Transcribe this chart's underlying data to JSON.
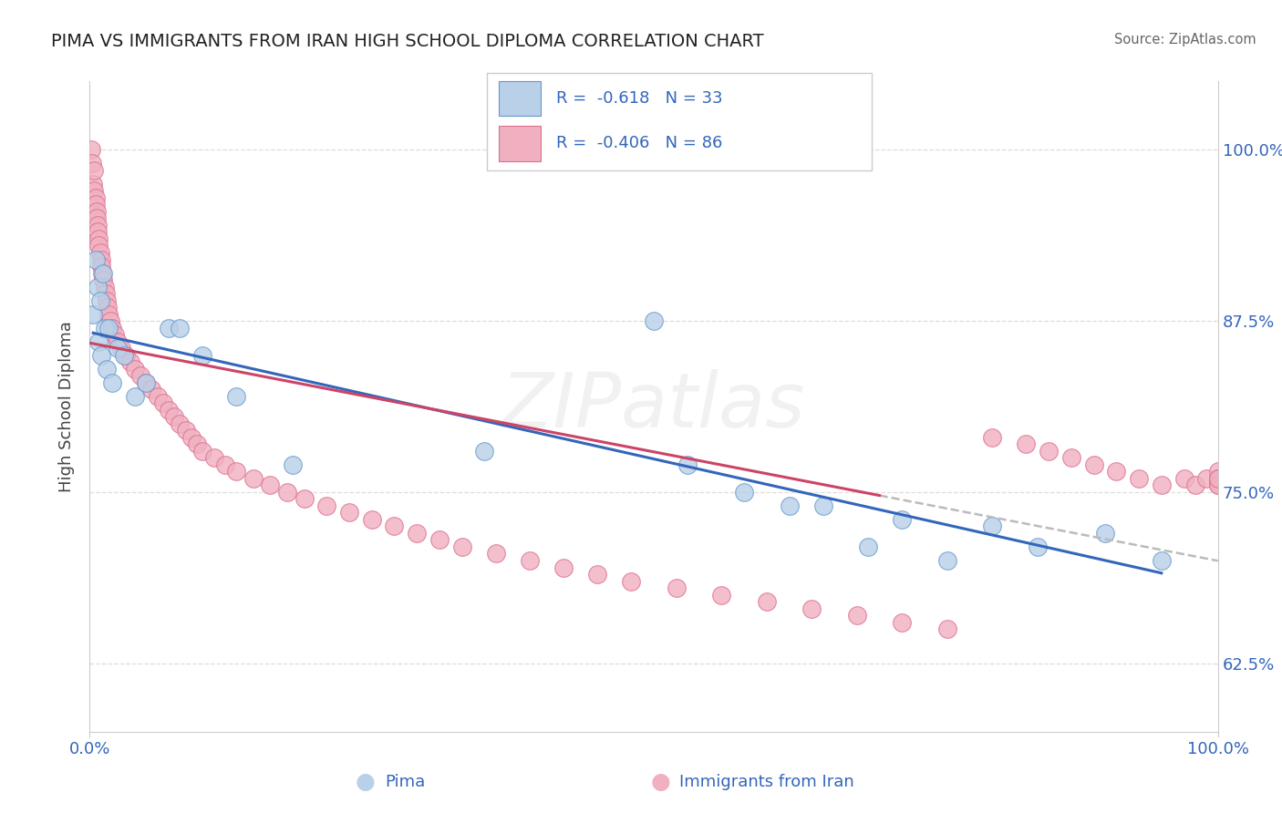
{
  "title": "PIMA VS IMMIGRANTS FROM IRAN HIGH SCHOOL DIPLOMA CORRELATION CHART",
  "source": "Source: ZipAtlas.com",
  "ylabel": "High School Diploma",
  "ytick_values": [
    0.625,
    0.75,
    0.875,
    1.0
  ],
  "ytick_labels": [
    "62.5%",
    "75.0%",
    "87.5%",
    "100.0%"
  ],
  "xlim": [
    0.0,
    1.0
  ],
  "ylim": [
    0.575,
    1.05
  ],
  "pima_R": -0.618,
  "pima_N": 33,
  "iran_R": -0.406,
  "iran_N": 86,
  "pima_color": "#b8d0e8",
  "pima_edge_color": "#6699cc",
  "iran_color": "#f0b0c0",
  "iran_edge_color": "#dd7090",
  "pima_line_color": "#3366bb",
  "iran_line_color": "#cc4466",
  "dashed_line_color": "#bbbbbb",
  "legend_text_color": "#3366bb",
  "axis_label_color": "#3366bb",
  "title_color": "#222222",
  "grid_color": "#dddddd",
  "watermark_text": "ZIPatlas",
  "legend_label1": "Pima",
  "legend_label2": "Immigrants from Iran",
  "pima_x": [
    0.003,
    0.005,
    0.007,
    0.008,
    0.009,
    0.01,
    0.012,
    0.013,
    0.015,
    0.017,
    0.02,
    0.025,
    0.03,
    0.04,
    0.05,
    0.07,
    0.08,
    0.1,
    0.13,
    0.18,
    0.35,
    0.5,
    0.53,
    0.58,
    0.62,
    0.65,
    0.69,
    0.72,
    0.76,
    0.8,
    0.84,
    0.9,
    0.95
  ],
  "pima_y": [
    0.88,
    0.92,
    0.9,
    0.86,
    0.89,
    0.85,
    0.91,
    0.87,
    0.84,
    0.87,
    0.83,
    0.855,
    0.85,
    0.82,
    0.83,
    0.87,
    0.87,
    0.85,
    0.82,
    0.77,
    0.78,
    0.875,
    0.77,
    0.75,
    0.74,
    0.74,
    0.71,
    0.73,
    0.7,
    0.725,
    0.71,
    0.72,
    0.7
  ],
  "iran_x": [
    0.001,
    0.002,
    0.003,
    0.004,
    0.004,
    0.005,
    0.005,
    0.006,
    0.006,
    0.007,
    0.007,
    0.008,
    0.008,
    0.009,
    0.01,
    0.01,
    0.011,
    0.012,
    0.013,
    0.014,
    0.015,
    0.016,
    0.017,
    0.018,
    0.02,
    0.022,
    0.025,
    0.028,
    0.032,
    0.036,
    0.04,
    0.045,
    0.05,
    0.055,
    0.06,
    0.065,
    0.07,
    0.075,
    0.08,
    0.085,
    0.09,
    0.095,
    0.1,
    0.11,
    0.12,
    0.13,
    0.145,
    0.16,
    0.175,
    0.19,
    0.21,
    0.23,
    0.25,
    0.27,
    0.29,
    0.31,
    0.33,
    0.36,
    0.39,
    0.42,
    0.45,
    0.48,
    0.52,
    0.56,
    0.6,
    0.64,
    0.68,
    0.72,
    0.76,
    0.8,
    0.83,
    0.85,
    0.87,
    0.89,
    0.91,
    0.93,
    0.95,
    0.97,
    0.98,
    0.99,
    1.0,
    1.0,
    1.0,
    1.0,
    1.0,
    1.0
  ],
  "iran_y": [
    1.0,
    0.99,
    0.975,
    0.985,
    0.97,
    0.965,
    0.96,
    0.955,
    0.95,
    0.945,
    0.94,
    0.935,
    0.93,
    0.925,
    0.92,
    0.915,
    0.91,
    0.905,
    0.9,
    0.895,
    0.89,
    0.885,
    0.88,
    0.875,
    0.87,
    0.865,
    0.86,
    0.855,
    0.85,
    0.845,
    0.84,
    0.835,
    0.83,
    0.825,
    0.82,
    0.815,
    0.81,
    0.805,
    0.8,
    0.795,
    0.79,
    0.785,
    0.78,
    0.775,
    0.77,
    0.765,
    0.76,
    0.755,
    0.75,
    0.745,
    0.74,
    0.735,
    0.73,
    0.725,
    0.72,
    0.715,
    0.71,
    0.705,
    0.7,
    0.695,
    0.69,
    0.685,
    0.68,
    0.675,
    0.67,
    0.665,
    0.66,
    0.655,
    0.65,
    0.79,
    0.785,
    0.78,
    0.775,
    0.77,
    0.765,
    0.76,
    0.755,
    0.76,
    0.755,
    0.76,
    0.755,
    0.76,
    0.765,
    0.76,
    0.755,
    0.76
  ]
}
